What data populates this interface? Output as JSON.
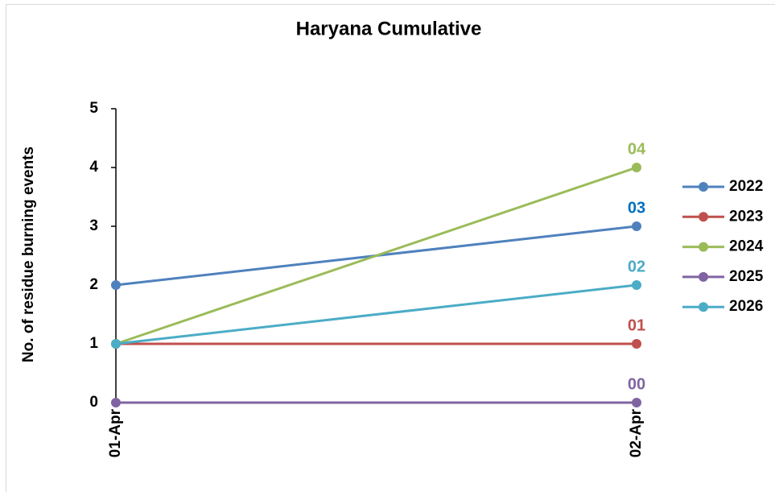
{
  "chart_data": {
    "type": "line",
    "title": "Haryana Cumulative",
    "y_label": "No. of residue burning events",
    "categories": [
      "01-Apr",
      "02-Apr"
    ],
    "series": [
      {
        "name": "2022",
        "color": "#4f81bd",
        "label_color": "#0070c0",
        "values": [
          2,
          3
        ],
        "value_labels": [
          null,
          "03"
        ]
      },
      {
        "name": "2023",
        "color": "#c0504d",
        "label_color": "#c0504d",
        "values": [
          1,
          1
        ],
        "value_labels": [
          null,
          "01"
        ]
      },
      {
        "name": "2024",
        "color": "#9bbb59",
        "label_color": "#9bbb59",
        "values": [
          1,
          4
        ],
        "value_labels": [
          null,
          "04"
        ]
      },
      {
        "name": "2025",
        "color": "#8064a2",
        "label_color": "#8064a2",
        "values": [
          0,
          0
        ],
        "value_labels": [
          null,
          "00"
        ]
      },
      {
        "name": "2026",
        "color": "#4bacc6",
        "label_color": "#4bacc6",
        "values": [
          1,
          2
        ],
        "value_labels": [
          null,
          "02"
        ]
      }
    ],
    "ylim": [
      0,
      5
    ],
    "yticks": [
      0,
      1,
      2,
      3,
      4,
      5
    ],
    "grid": false,
    "legend": "right"
  }
}
